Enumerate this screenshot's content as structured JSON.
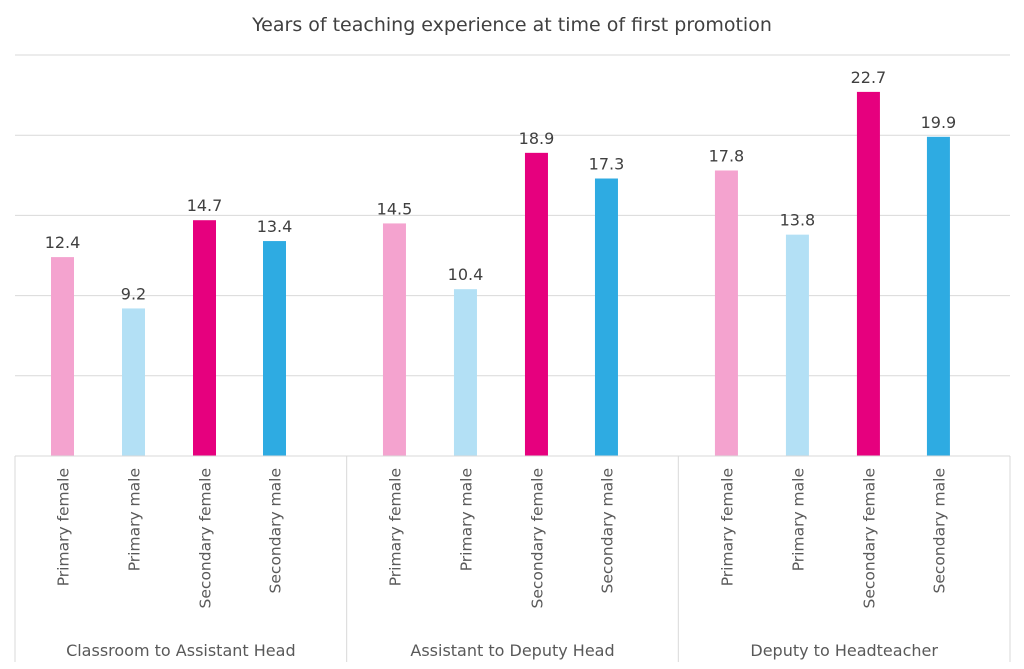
{
  "chart_data": {
    "type": "bar",
    "title": "Years of teaching experience at time of first promotion",
    "xlabel": "",
    "ylabel": "",
    "ylim": [
      0,
      25
    ],
    "ygrid_step": 5,
    "grid": true,
    "y_tick_labels_shown": false,
    "groups": [
      {
        "label": "Classroom to Assistant Head",
        "values": [
          12.4,
          9.2,
          14.7,
          13.4
        ]
      },
      {
        "label": "Assistant to Deputy Head",
        "values": [
          14.5,
          10.4,
          18.9,
          17.3
        ]
      },
      {
        "label": "Deputy to Headteacher",
        "values": [
          17.8,
          13.8,
          22.7,
          19.9
        ]
      }
    ],
    "categories": [
      "Primary female",
      "Primary male",
      "Secondary female",
      "Secondary male"
    ],
    "colors": [
      "#f4a3cf",
      "#b3e0f5",
      "#e6007e",
      "#2eabe2"
    ]
  }
}
